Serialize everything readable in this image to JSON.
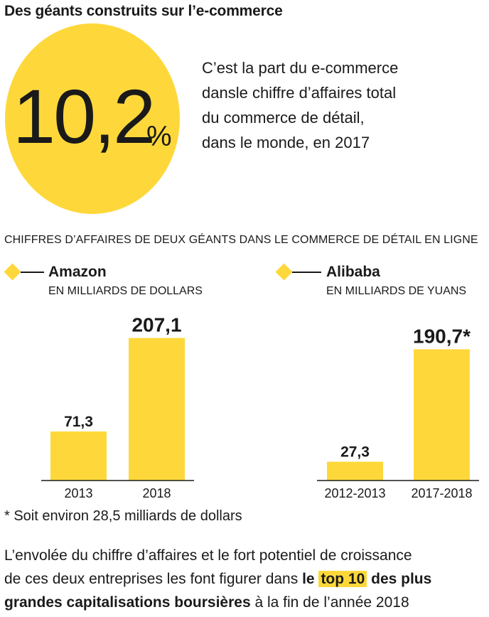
{
  "title": "Des géants construits sur l’e-commerce",
  "stat": {
    "value": "10,2",
    "unit": "%",
    "description_lines": [
      "C’est la part du e-commerce",
      "dansle chiffre d’affaires total",
      "du commerce de détail,",
      "dans le monde, en 2017"
    ]
  },
  "colors": {
    "accent": "#FED83A",
    "text": "#1a1a1a",
    "axis": "#1a1a1a"
  },
  "chart_heading": "CHIFFRES D’AFFAIRES DE DEUX GÉANTS DANS LE COMMERCE DE DÉTAIL EN LIGNE",
  "chart_data": [
    {
      "type": "bar",
      "title": "Amazon",
      "subtitle": "EN MILLIARDS DE DOLLARS",
      "categories": [
        "2013",
        "2018"
      ],
      "values": [
        71.3,
        207.1
      ],
      "value_labels": [
        "71,3",
        "207,1"
      ],
      "ylim": [
        0,
        220
      ]
    },
    {
      "type": "bar",
      "title": "Alibaba",
      "subtitle": "EN MILLIARDS DE YUANS",
      "categories": [
        "2012-2013",
        "2017-2018"
      ],
      "values": [
        27.3,
        190.7
      ],
      "value_labels": [
        "27,3",
        "190,7*"
      ],
      "ylim": [
        0,
        220
      ]
    }
  ],
  "footnote": "* Soit environ 28,5 milliards de dollars",
  "conclusion": {
    "line1": "L’envolée du chiffre d’affaires et le fort potentiel de croissance",
    "line2_pre": "de ces deux entreprises les font figurer dans ",
    "line2_bold": "le ",
    "line2_highlight": "top 10",
    "line2_bold_post": " des plus",
    "line3_bold": "grandes capitalisations boursières",
    "line3_post": " à la fin de l’année 2018"
  }
}
